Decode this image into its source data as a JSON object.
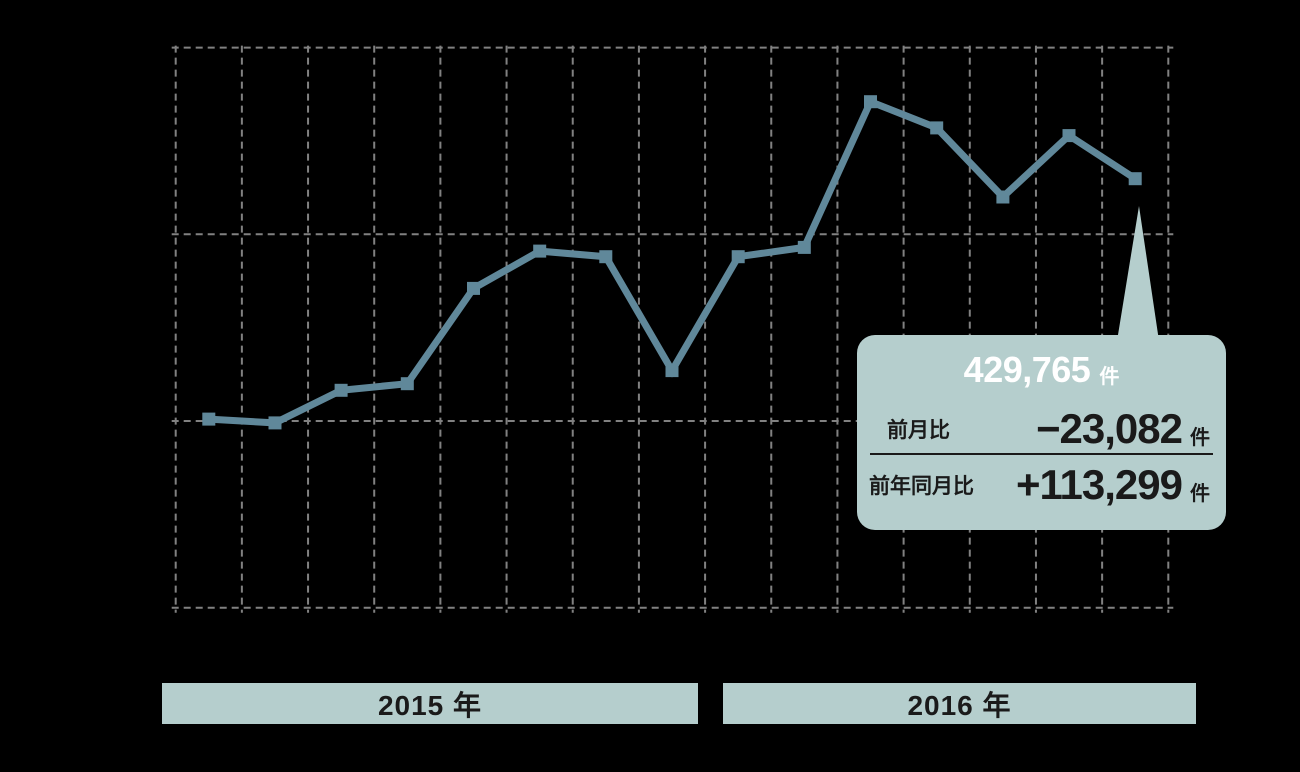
{
  "colors": {
    "background": "#000000",
    "grid": "#818181",
    "line": "#60889a",
    "accent": "#b5cecd",
    "callout_title": "#ffffff",
    "text_dark": "#1a1a1a"
  },
  "chart_data": {
    "type": "line",
    "title": "",
    "unit": "件",
    "values": [
      301000,
      299000,
      316466,
      320000,
      371000,
      391000,
      388000,
      327000,
      388000,
      393000,
      471000,
      457000,
      420000,
      452847,
      429765
    ],
    "ylim": [
      200000,
      500000
    ],
    "y_grid_step": 100000,
    "x_count": 15,
    "grid": "dashed",
    "legend": "none",
    "axis_labels": "none",
    "year_bands": [
      {
        "label": "2015 年",
        "point_start": 1,
        "point_end": 8
      },
      {
        "label": "2016 年",
        "point_start": 9,
        "point_end": 15
      }
    ],
    "annotation": {
      "attached_to_point": 15,
      "value_label": "429,765",
      "unit": "件",
      "rows": [
        {
          "label": "前月比",
          "value": "−23,082",
          "unit": "件"
        },
        {
          "label": "前年同月比",
          "value": "+113,299",
          "unit": "件"
        }
      ]
    }
  }
}
